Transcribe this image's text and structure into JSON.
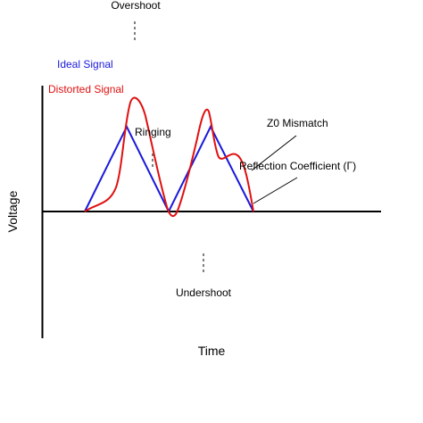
{
  "labels": {
    "overshoot": "Overshoot",
    "ringing": "Ringing",
    "undershoot": "Undershoot",
    "z0_mismatch": "Z0 Mismatch",
    "reflection_coefficient": "Reflection Coefficient (Γ)",
    "x_axis": "Time",
    "y_axis": "Voltage"
  },
  "legend": {
    "ideal": "Ideal Signal",
    "distorted": "Distorted Signal"
  },
  "colors": {
    "ideal": "#1a1adb",
    "distorted": "#e01010",
    "axis": "#000000",
    "marker": "#555555"
  }
}
